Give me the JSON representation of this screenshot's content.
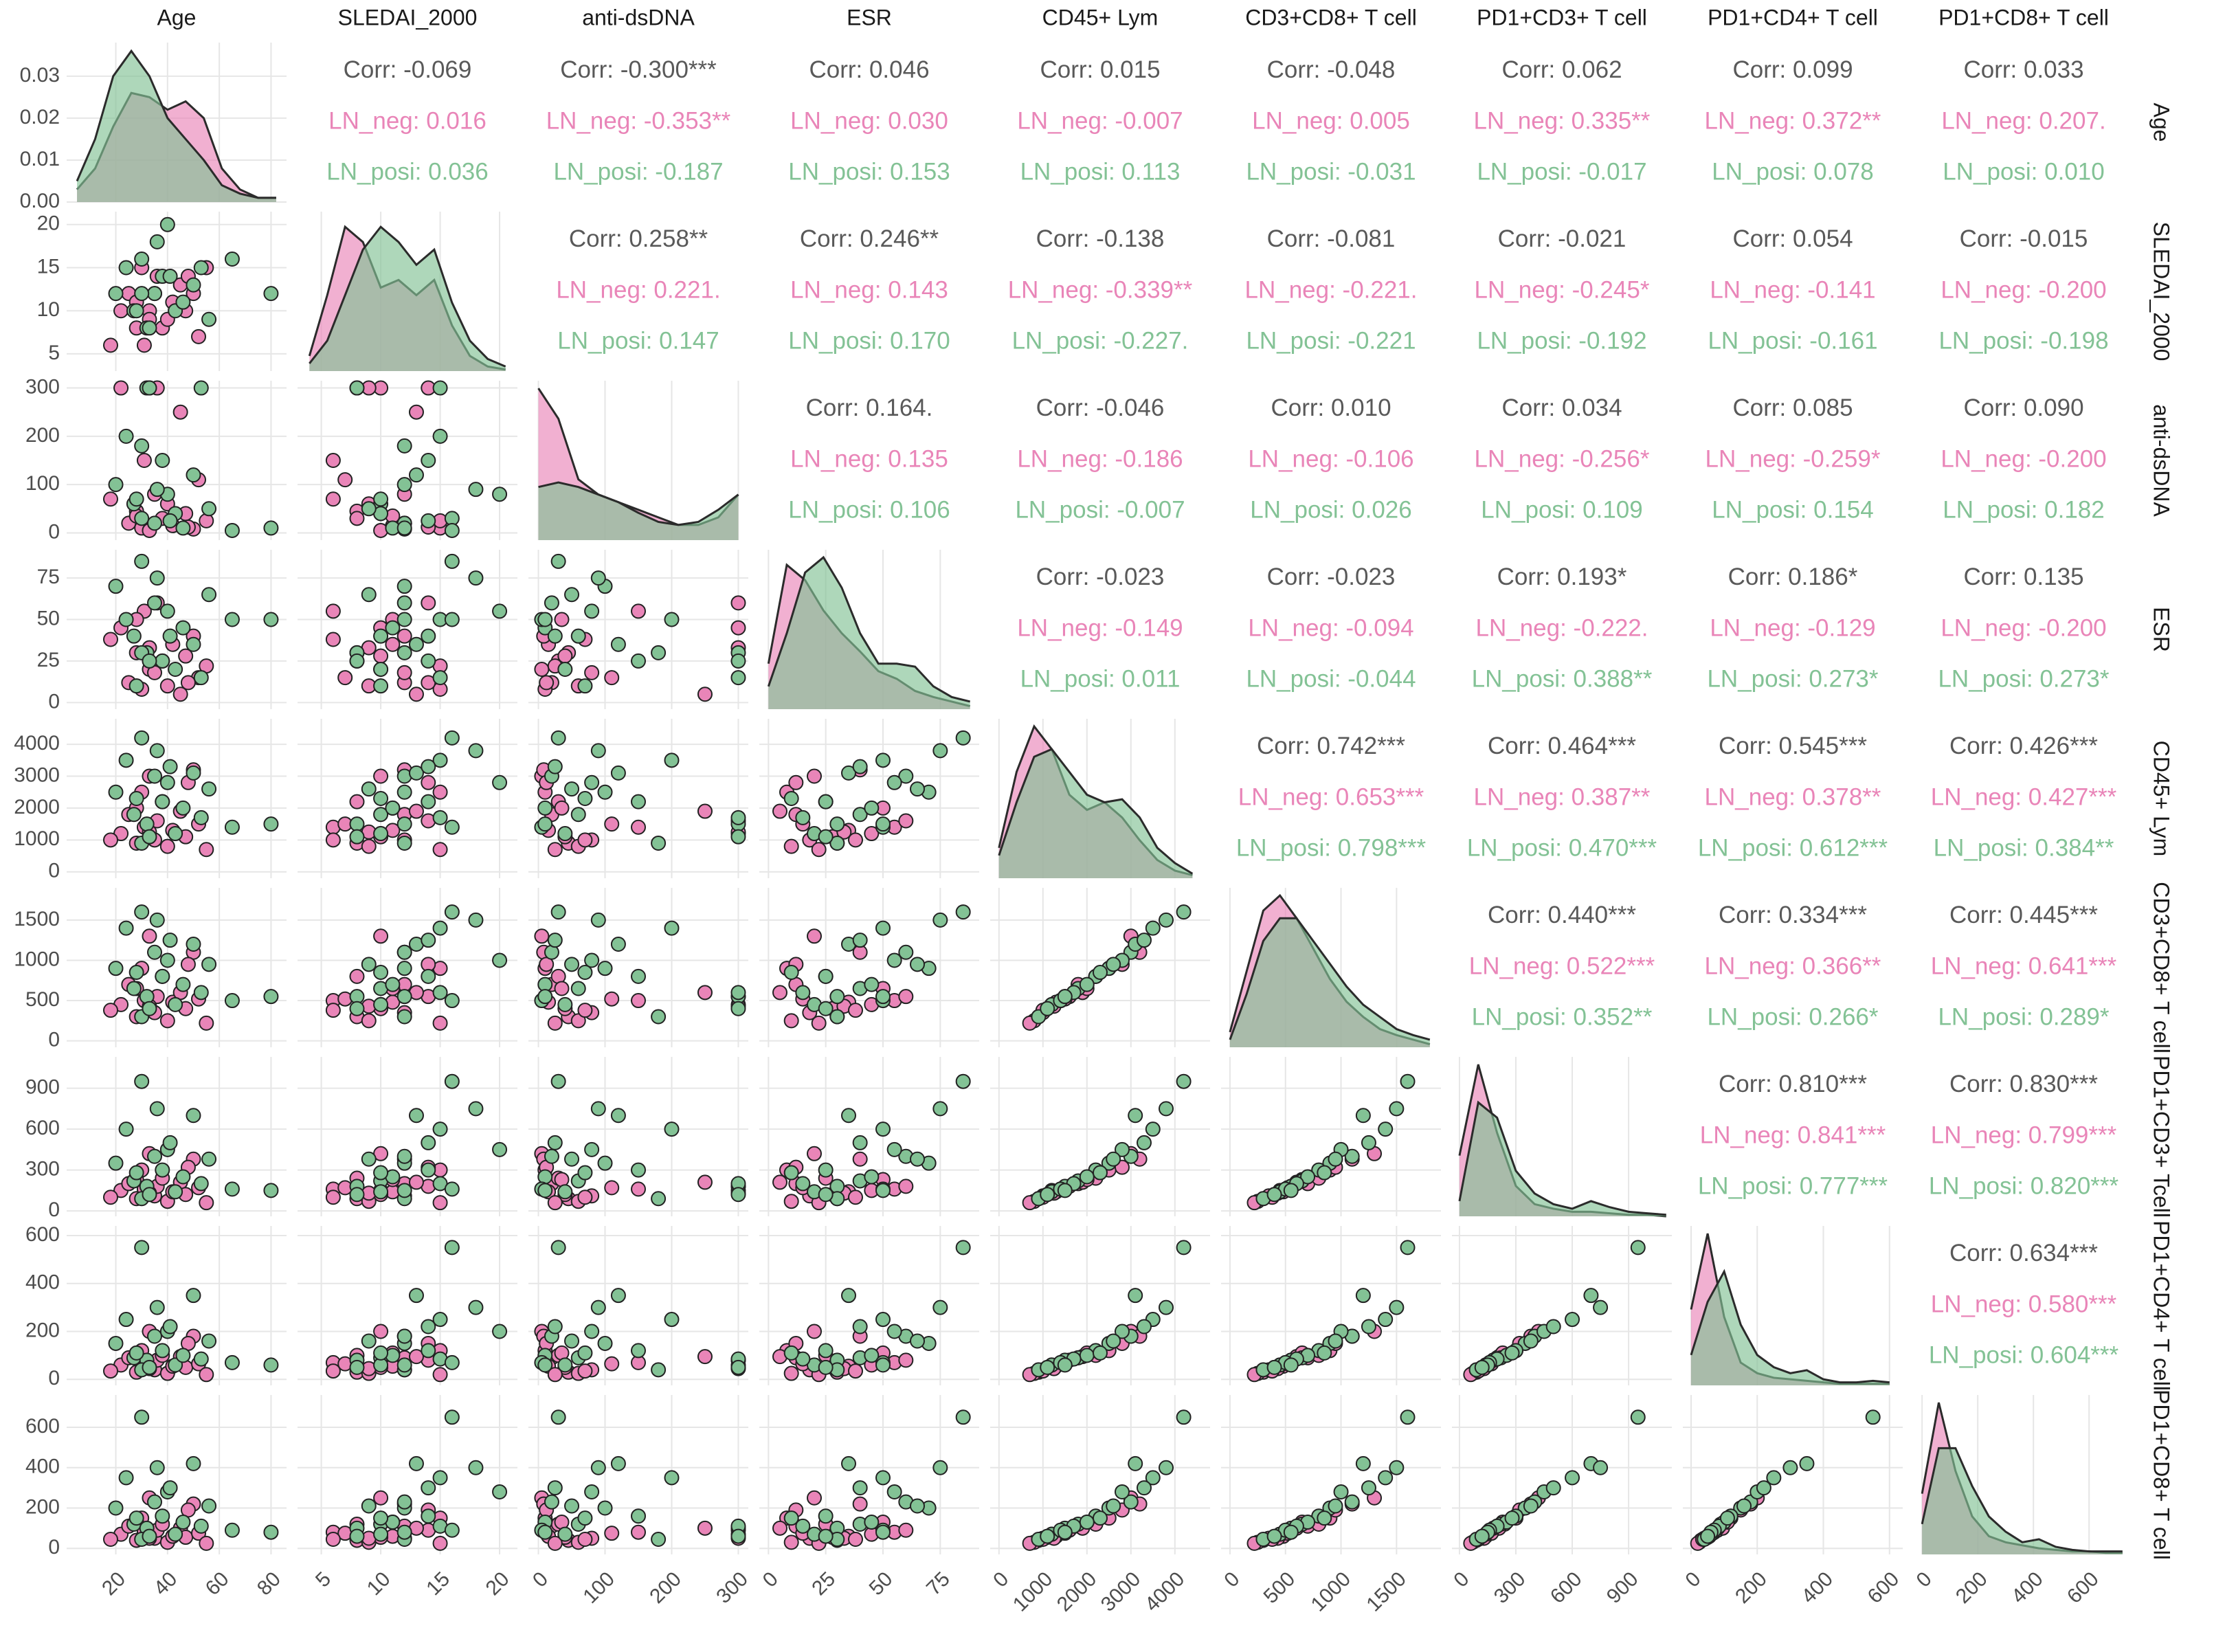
{
  "chart_data": {
    "type": "pairs",
    "variables": [
      {
        "name": "Age",
        "lim": [
          1,
          86
        ],
        "ticks": [
          20,
          40,
          60,
          80
        ],
        "density_ylim": [
          0,
          0.038
        ],
        "density_yticks": [
          {
            "value": 0,
            "label": "0.00"
          },
          0.01,
          0.02,
          0.03
        ],
        "density_x": [
          5,
          12,
          19,
          26,
          33,
          40,
          47,
          54,
          61,
          68,
          75,
          82
        ]
      },
      {
        "name": "SLEDAI_2000",
        "lim": [
          3,
          21.5
        ],
        "ticks": [
          5,
          10,
          15,
          20
        ],
        "density_ylim": [
          0,
          1.05
        ],
        "density_x": [
          4,
          5.5,
          7,
          8.5,
          10,
          11.5,
          13,
          14.5,
          16,
          17.5,
          19,
          20.5
        ]
      },
      {
        "name": "anti-dsDNA",
        "lim": [
          -15,
          315
        ],
        "ticks": [
          0,
          100,
          200,
          300
        ],
        "density_ylim": [
          0,
          1.05
        ],
        "density_x": [
          0,
          30,
          60,
          90,
          120,
          150,
          180,
          210,
          240,
          270,
          300
        ]
      },
      {
        "name": "ESR",
        "lim": [
          -4,
          92
        ],
        "ticks": [
          0,
          25,
          50,
          75
        ],
        "density_ylim": [
          0,
          1.05
        ],
        "density_x": [
          0,
          8,
          16,
          24,
          32,
          40,
          48,
          56,
          64,
          72,
          80,
          88
        ]
      },
      {
        "name": "CD45+ Lym",
        "lim": [
          -200,
          4800
        ],
        "ticks": [
          0,
          1000,
          2000,
          3000,
          4000
        ],
        "density_ylim": [
          0,
          1.05
        ],
        "density_x": [
          0,
          400,
          800,
          1200,
          1600,
          2000,
          2400,
          2800,
          3200,
          3600,
          4000,
          4400
        ]
      },
      {
        "name": "CD3+CD8+ T cell",
        "lim": [
          -80,
          1900
        ],
        "ticks": [
          0,
          500,
          1000,
          1500
        ],
        "density_ylim": [
          0,
          1.05
        ],
        "density_x": [
          0,
          150,
          300,
          450,
          600,
          750,
          900,
          1050,
          1200,
          1350,
          1500,
          1650,
          1800
        ]
      },
      {
        "name": "PD1+CD3+ T cell",
        "lim": [
          -40,
          1130
        ],
        "ticks": [
          0,
          300,
          600,
          900
        ],
        "density_ylim": [
          0,
          1.05
        ],
        "density_x": [
          0,
          100,
          200,
          300,
          400,
          500,
          600,
          700,
          800,
          900,
          1000,
          1100
        ]
      },
      {
        "name": "PD1+CD4+ T cell",
        "lim": [
          -25,
          640
        ],
        "ticks": [
          0,
          200,
          400,
          600
        ],
        "density_ylim": [
          0,
          1.05
        ],
        "density_x": [
          0,
          50,
          100,
          150,
          200,
          250,
          300,
          350,
          400,
          450,
          500,
          550,
          600
        ]
      },
      {
        "name": "PD1+CD8+ T cell",
        "lim": [
          -30,
          760
        ],
        "ticks": [
          0,
          200,
          400,
          600
        ],
        "density_ylim": [
          0,
          1.05
        ],
        "density_x": [
          0,
          60,
          120,
          180,
          240,
          300,
          360,
          420,
          480,
          540,
          600,
          660,
          720
        ]
      }
    ],
    "row_labels": [
      "Age",
      "SLEDAI_2000",
      "anti-dsDNA",
      "ESR",
      "CD45+ Lym",
      "CD3+CD8+ T cell",
      "PD1+CD3+ Tcell",
      "PD1+CD4+ T cell",
      "PD1+CD8+ T cell"
    ],
    "series": [
      {
        "color": "#e985b8",
        "values": [
          [
            22,
            25,
            28,
            30,
            31,
            33,
            35,
            36,
            38,
            40,
            42,
            45,
            47,
            50,
            52,
            55,
            28,
            33,
            48,
            18
          ],
          [
            10,
            12,
            8,
            15,
            6,
            10,
            12,
            14,
            8,
            9,
            11,
            13,
            10,
            12,
            7,
            15,
            11,
            9,
            14,
            6
          ],
          [
            300,
            20,
            45,
            10,
            150,
            5,
            80,
            300,
            30,
            60,
            15,
            250,
            40,
            8,
            110,
            25,
            35,
            300,
            12,
            70
          ],
          [
            45,
            12,
            30,
            8,
            55,
            20,
            18,
            60,
            25,
            10,
            35,
            5,
            28,
            40,
            15,
            22,
            50,
            33,
            12,
            38
          ],
          [
            1200,
            1800,
            900,
            2500,
            1400,
            3000,
            1000,
            1600,
            2200,
            800,
            1300,
            1900,
            1100,
            3200,
            1500,
            700,
            2000,
            1250,
            2800,
            1000
          ],
          [
            450,
            700,
            300,
            900,
            500,
            1300,
            350,
            550,
            800,
            250,
            480,
            600,
            400,
            1100,
            520,
            220,
            650,
            430,
            950,
            380
          ],
          [
            150,
            200,
            90,
            300,
            160,
            420,
            110,
            180,
            240,
            70,
            140,
            210,
            120,
            380,
            170,
            60,
            230,
            130,
            320,
            100
          ],
          [
            60,
            90,
            30,
            120,
            70,
            200,
            40,
            80,
            100,
            25,
            55,
            95,
            50,
            180,
            65,
            20,
            110,
            45,
            150,
            35
          ],
          [
            70,
            110,
            40,
            150,
            80,
            250,
            50,
            90,
            120,
            30,
            60,
            100,
            55,
            220,
            75,
            25,
            130,
            50,
            190,
            45
          ]
        ],
        "density": [
          [
            0.003,
            0.008,
            0.018,
            0.026,
            0.025,
            0.022,
            0.024,
            0.02,
            0.008,
            0.003,
            0.001,
            0.001
          ],
          [
            0.1,
            0.5,
            0.95,
            0.85,
            0.55,
            0.6,
            0.5,
            0.6,
            0.3,
            0.1,
            0.03,
            0.01
          ],
          [
            1,
            0.8,
            0.4,
            0.3,
            0.25,
            0.2,
            0.15,
            0.1,
            0.1,
            0.15,
            0.3
          ],
          [
            0.3,
            0.95,
            0.85,
            0.65,
            0.5,
            0.38,
            0.25,
            0.2,
            0.12,
            0.08,
            0.05,
            0.02
          ],
          [
            0.2,
            0.7,
            1,
            0.85,
            0.55,
            0.45,
            0.5,
            0.4,
            0.25,
            0.12,
            0.05,
            0.02
          ],
          [
            0.1,
            0.5,
            0.9,
            1,
            0.85,
            0.65,
            0.45,
            0.3,
            0.2,
            0.12,
            0.08,
            0.05,
            0.02
          ],
          [
            0.4,
            1,
            0.55,
            0.2,
            0.08,
            0.05,
            0.03,
            0.03,
            0.02,
            0.01,
            0.01,
            0
          ],
          [
            0.5,
            1,
            0.45,
            0.15,
            0.08,
            0.05,
            0.04,
            0.03,
            0.02,
            0.01,
            0.01,
            0.01,
            0.01
          ],
          [
            0.4,
            1,
            0.55,
            0.25,
            0.12,
            0.08,
            0.06,
            0.04,
            0.03,
            0.02,
            0.02,
            0.01,
            0.01
          ]
        ]
      },
      {
        "color": "#83c295",
        "values": [
          [
            20,
            24,
            27,
            30,
            32,
            35,
            38,
            40,
            43,
            46,
            50,
            53,
            56,
            30,
            36,
            65,
            80,
            28,
            41,
            33
          ],
          [
            12,
            15,
            10,
            16,
            8,
            12,
            14,
            20,
            10,
            11,
            13,
            15,
            9,
            12,
            18,
            16,
            12,
            10,
            14,
            8
          ],
          [
            100,
            200,
            60,
            30,
            300,
            20,
            150,
            80,
            40,
            10,
            120,
            300,
            50,
            180,
            90,
            5,
            10,
            70,
            25,
            300
          ],
          [
            70,
            50,
            40,
            85,
            30,
            60,
            25,
            55,
            20,
            45,
            35,
            15,
            65,
            30,
            75,
            50,
            50,
            10,
            40,
            25
          ],
          [
            2500,
            3500,
            1800,
            4200,
            1500,
            3000,
            2200,
            2800,
            1200,
            2000,
            3100,
            1700,
            2600,
            900,
            3800,
            1400,
            1500,
            2300,
            3300,
            1100
          ],
          [
            900,
            1400,
            650,
            1600,
            550,
            1100,
            800,
            1000,
            450,
            700,
            1200,
            600,
            950,
            300,
            1500,
            500,
            550,
            850,
            1250,
            400
          ],
          [
            350,
            600,
            220,
            950,
            180,
            400,
            300,
            450,
            140,
            250,
            700,
            200,
            380,
            90,
            750,
            160,
            150,
            280,
            500,
            120
          ],
          [
            150,
            250,
            90,
            550,
            80,
            180,
            120,
            200,
            60,
            100,
            350,
            85,
            160,
            40,
            300,
            70,
            60,
            110,
            220,
            50
          ],
          [
            200,
            350,
            120,
            650,
            100,
            230,
            160,
            280,
            70,
            130,
            420,
            110,
            210,
            45,
            400,
            90,
            80,
            150,
            300,
            60
          ]
        ],
        "density": [
          [
            0.005,
            0.015,
            0.03,
            0.036,
            0.03,
            0.02,
            0.015,
            0.01,
            0.004,
            0.002,
            0.001,
            0.001
          ],
          [
            0.05,
            0.2,
            0.5,
            0.8,
            0.95,
            0.85,
            0.7,
            0.8,
            0.45,
            0.2,
            0.08,
            0.03
          ],
          [
            0.35,
            0.38,
            0.35,
            0.3,
            0.25,
            0.18,
            0.12,
            0.1,
            0.12,
            0.2,
            0.3
          ],
          [
            0.15,
            0.5,
            0.9,
            1,
            0.8,
            0.5,
            0.3,
            0.3,
            0.28,
            0.15,
            0.08,
            0.05
          ],
          [
            0.15,
            0.5,
            0.8,
            0.85,
            0.7,
            0.55,
            0.5,
            0.52,
            0.4,
            0.2,
            0.1,
            0.03
          ],
          [
            0.05,
            0.35,
            0.7,
            0.85,
            0.85,
            0.7,
            0.55,
            0.4,
            0.28,
            0.2,
            0.12,
            0.08,
            0.05
          ],
          [
            0.1,
            0.75,
            0.65,
            0.3,
            0.15,
            0.08,
            0.05,
            0.1,
            0.06,
            0.03,
            0.02,
            0.01
          ],
          [
            0.2,
            0.55,
            0.75,
            0.4,
            0.2,
            0.12,
            0.08,
            0.1,
            0.04,
            0.02,
            0.02,
            0.03,
            0.02
          ],
          [
            0.2,
            0.7,
            0.7,
            0.45,
            0.25,
            0.15,
            0.08,
            0.1,
            0.05,
            0.03,
            0.02,
            0.02,
            0.02
          ]
        ]
      }
    ],
    "correlations": [
      [
        [
          "Corr: -0.069",
          "LN_neg: 0.016",
          "LN_posi: 0.036"
        ],
        [
          "Corr: -0.300***",
          "LN_neg: -0.353**",
          "LN_posi: -0.187"
        ],
        [
          "Corr: 0.046",
          "LN_neg: 0.030",
          "LN_posi: 0.153"
        ],
        [
          "Corr: 0.015",
          "LN_neg: -0.007",
          "LN_posi: 0.113"
        ],
        [
          "Corr: -0.048",
          "LN_neg: 0.005",
          "LN_posi: -0.031"
        ],
        [
          "Corr: 0.062",
          "LN_neg: 0.335**",
          "LN_posi: -0.017"
        ],
        [
          "Corr: 0.099",
          "LN_neg: 0.372**",
          "LN_posi: 0.078"
        ],
        [
          "Corr: 0.033",
          "LN_neg: 0.207.",
          "LN_posi: 0.010"
        ]
      ],
      [
        [
          "Corr: 0.258**",
          "LN_neg: 0.221.",
          "LN_posi: 0.147"
        ],
        [
          "Corr: 0.246**",
          "LN_neg: 0.143",
          "LN_posi: 0.170"
        ],
        [
          "Corr: -0.138",
          "LN_neg: -0.339**",
          "LN_posi: -0.227."
        ],
        [
          "Corr: -0.081",
          "LN_neg: -0.221.",
          "LN_posi: -0.221"
        ],
        [
          "Corr: -0.021",
          "LN_neg: -0.245*",
          "LN_posi: -0.192"
        ],
        [
          "Corr: 0.054",
          "LN_neg: -0.141",
          "LN_posi: -0.161"
        ],
        [
          "Corr: -0.015",
          "LN_neg: -0.200",
          "LN_posi: -0.198"
        ]
      ],
      [
        [
          "Corr: 0.164.",
          "LN_neg: 0.135",
          "LN_posi: 0.106"
        ],
        [
          "Corr: -0.046",
          "LN_neg: -0.186",
          "LN_posi: -0.007"
        ],
        [
          "Corr: 0.010",
          "LN_neg: -0.106",
          "LN_posi: 0.026"
        ],
        [
          "Corr: 0.034",
          "LN_neg: -0.256*",
          "LN_posi: 0.109"
        ],
        [
          "Corr: 0.085",
          "LN_neg: -0.259*",
          "LN_posi: 0.154"
        ],
        [
          "Corr: 0.090",
          "LN_neg: -0.200",
          "LN_posi: 0.182"
        ]
      ],
      [
        [
          "Corr: -0.023",
          "LN_neg: -0.149",
          "LN_posi: 0.011"
        ],
        [
          "Corr: -0.023",
          "LN_neg: -0.094",
          "LN_posi: -0.044"
        ],
        [
          "Corr: 0.193*",
          "LN_neg: -0.222.",
          "LN_posi: 0.388**"
        ],
        [
          "Corr: 0.186*",
          "LN_neg: -0.129",
          "LN_posi: 0.273*"
        ],
        [
          "Corr: 0.135",
          "LN_neg: -0.200",
          "LN_posi: 0.273*"
        ]
      ],
      [
        [
          "Corr: 0.742***",
          "LN_neg: 0.653***",
          "LN_posi: 0.798***"
        ],
        [
          "Corr: 0.464***",
          "LN_neg: 0.387**",
          "LN_posi: 0.470***"
        ],
        [
          "Corr: 0.545***",
          "LN_neg: 0.378**",
          "LN_posi: 0.612***"
        ],
        [
          "Corr: 0.426***",
          "LN_neg: 0.427***",
          "LN_posi: 0.384**"
        ]
      ],
      [
        [
          "Corr: 0.440***",
          "LN_neg: 0.522***",
          "LN_posi: 0.352**"
        ],
        [
          "Corr: 0.334***",
          "LN_neg: 0.366**",
          "LN_posi: 0.266*"
        ],
        [
          "Corr: 0.445***",
          "LN_neg: 0.641***",
          "LN_posi: 0.289*"
        ]
      ],
      [
        [
          "Corr: 0.810***",
          "LN_neg: 0.841***",
          "LN_posi: 0.777***"
        ],
        [
          "Corr: 0.830***",
          "LN_neg: 0.799***",
          "LN_posi: 0.820***"
        ]
      ],
      [
        [
          "Corr: 0.634***",
          "LN_neg: 0.580***",
          "LN_posi: 0.604***"
        ]
      ]
    ]
  }
}
